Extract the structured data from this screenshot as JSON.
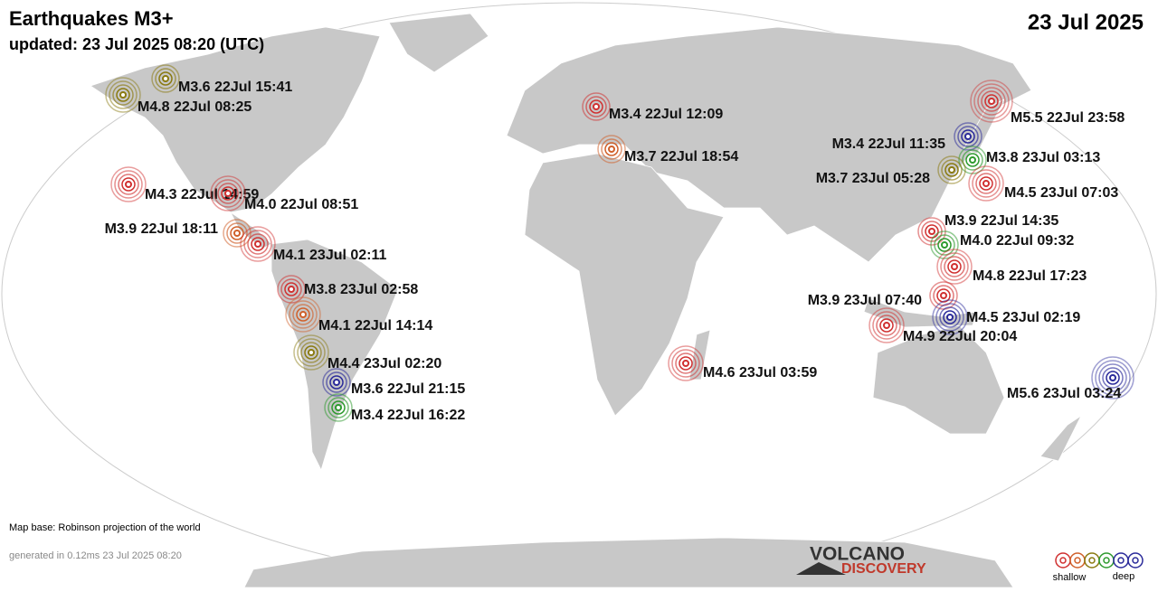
{
  "header": {
    "title": "Earthquakes M3+",
    "updated": "updated: 23 Jul 2025 08:20 (UTC)",
    "date": "23 Jul 2025"
  },
  "quakes": [
    "M3.6 22Jul 15:41",
    "M4.8 22Jul 08:25",
    "M3.4 22Jul 12:09",
    "M5.5 22Jul 23:58",
    "M3.4 22Jul 11:35",
    "M3.7 22Jul 18:54",
    "M3.8 23Jul 03:13",
    "M3.7 23Jul 05:28",
    "M4.5 23Jul 07:03",
    "M4.3 22Jul 14:59",
    "M4.0 22Jul 08:51",
    "M3.9 22Jul 18:11",
    "M4.1 23Jul 02:11",
    "M3.9 22Jul 14:35",
    "M4.0 22Jul 09:32",
    "M4.8 22Jul 17:23",
    "M3.8 23Jul 02:58",
    "M3.9 23Jul 07:40",
    "M4.1 22Jul 14:14",
    "M4.5 23Jul 02:19",
    "M4.9 22Jul 20:04",
    "M4.4 23Jul 02:20",
    "M4.6 23Jul 03:59",
    "M3.6 22Jul 21:15",
    "M3.4 22Jul 16:22",
    "M5.6 23Jul 03:24"
  ],
  "footer": {
    "map_base": "Map base: Robinson projection of the world",
    "generated": "generated in 0.12ms 23 Jul 2025 08:20"
  },
  "legend": {
    "shallow": "shallow",
    "deep": "deep"
  },
  "logo": {
    "top": "VOLCANO",
    "bottom": "DISCOVERY"
  }
}
